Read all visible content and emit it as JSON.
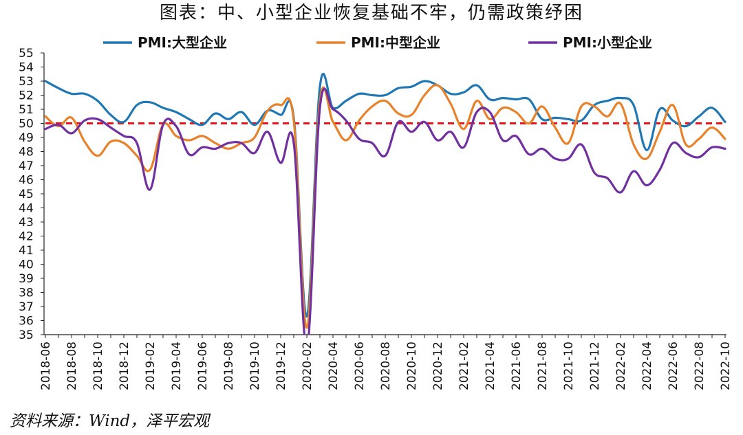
{
  "title": "图表：中、小型企业恢复基础不牢，仍需政策纾困",
  "source": "资料来源：Wind，泽平宏观",
  "chart_data": {
    "type": "line",
    "ylim": [
      35,
      55
    ],
    "yticks": [
      35,
      36,
      37,
      38,
      39,
      40,
      41,
      42,
      43,
      44,
      45,
      46,
      47,
      48,
      49,
      50,
      51,
      52,
      53,
      54,
      55
    ],
    "x": [
      "2018-06",
      "2018-07",
      "2018-08",
      "2018-09",
      "2018-10",
      "2018-11",
      "2018-12",
      "2019-01",
      "2019-02",
      "2019-03",
      "2019-04",
      "2019-05",
      "2019-06",
      "2019-07",
      "2019-08",
      "2019-09",
      "2019-10",
      "2019-11",
      "2019-12",
      "2020-01",
      "2020-02",
      "2020-03",
      "2020-04",
      "2020-05",
      "2020-06",
      "2020-07",
      "2020-08",
      "2020-09",
      "2020-10",
      "2020-11",
      "2020-12",
      "2021-01",
      "2021-02",
      "2021-03",
      "2021-04",
      "2021-05",
      "2021-06",
      "2021-07",
      "2021-08",
      "2021-09",
      "2021-10",
      "2021-11",
      "2021-12",
      "2022-01",
      "2022-02",
      "2022-03",
      "2022-04",
      "2022-05",
      "2022-06",
      "2022-07",
      "2022-08",
      "2022-09",
      "2022-10"
    ],
    "xtick_labels": [
      "2018-06",
      "2018-08",
      "2018-10",
      "2018-12",
      "2019-02",
      "2019-04",
      "2019-06",
      "2019-08",
      "2019-10",
      "2019-12",
      "2020-02",
      "2020-04",
      "2020-06",
      "2020-08",
      "2020-10",
      "2020-12",
      "2021-02",
      "2021-04",
      "2021-06",
      "2021-08",
      "2021-10",
      "2021-12",
      "2022-02",
      "2022-04",
      "2022-06",
      "2022-08",
      "2022-10"
    ],
    "series": [
      {
        "name": "PMI:大型企业",
        "color": "#1f77b4",
        "values": [
          53.0,
          52.5,
          52.1,
          52.1,
          51.6,
          50.6,
          50.1,
          51.3,
          51.5,
          51.1,
          50.8,
          50.3,
          49.9,
          50.7,
          50.3,
          50.8,
          49.9,
          50.9,
          50.6,
          50.4,
          36.3,
          52.6,
          51.1,
          51.6,
          52.1,
          52.0,
          52.0,
          52.5,
          52.6,
          53.0,
          52.7,
          52.1,
          52.2,
          52.7,
          51.7,
          51.8,
          51.7,
          51.7,
          50.3,
          50.4,
          50.3,
          50.2,
          51.3,
          51.6,
          51.8,
          51.3,
          48.1,
          51.0,
          50.2,
          49.8,
          50.5,
          51.1,
          50.1
        ]
      },
      {
        "name": "PMI:中型企业",
        "color": "#e8822a",
        "values": [
          50.5,
          49.8,
          50.4,
          48.7,
          47.7,
          48.7,
          48.6,
          47.7,
          46.7,
          49.9,
          49.1,
          48.8,
          49.1,
          48.6,
          48.2,
          48.6,
          49.0,
          50.9,
          51.3,
          50.2,
          35.5,
          51.6,
          50.1,
          48.8,
          50.2,
          51.2,
          51.6,
          50.7,
          50.6,
          52.0,
          52.7,
          51.4,
          49.6,
          51.6,
          50.3,
          51.1,
          50.8,
          50.0,
          51.2,
          49.7,
          48.6,
          51.2,
          51.2,
          50.5,
          51.4,
          48.5,
          47.5,
          49.4,
          51.3,
          48.5,
          48.9,
          49.7,
          48.9
        ]
      },
      {
        "name": "PMI:小型企业",
        "color": "#7030a0",
        "values": [
          49.6,
          49.9,
          49.3,
          50.2,
          50.3,
          49.7,
          49.1,
          48.6,
          45.3,
          49.9,
          49.8,
          47.8,
          48.3,
          48.2,
          48.6,
          48.6,
          47.9,
          49.4,
          47.2,
          48.6,
          34.1,
          51.1,
          51.0,
          50.2,
          48.9,
          48.6,
          47.7,
          50.1,
          49.4,
          50.1,
          48.8,
          49.4,
          48.3,
          50.8,
          50.8,
          48.8,
          49.1,
          47.8,
          48.2,
          47.5,
          47.5,
          48.5,
          46.5,
          46.1,
          45.1,
          46.6,
          45.6,
          46.7,
          48.6,
          47.9,
          47.6,
          48.3,
          48.2
        ]
      }
    ],
    "reference_line": {
      "value": 50,
      "color": "#e8141b",
      "style": "dashed"
    },
    "legend_position": "top"
  }
}
